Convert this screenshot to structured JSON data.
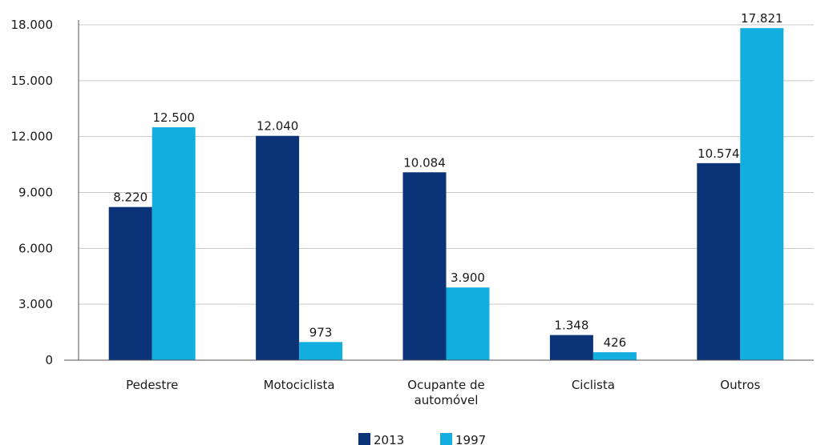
{
  "chart_data": {
    "type": "bar",
    "categories": [
      [
        "Pedestre"
      ],
      [
        "Motociclista"
      ],
      [
        "Ocupante de",
        "automóvel"
      ],
      [
        "Ciclista"
      ],
      [
        "Outros"
      ]
    ],
    "series": [
      {
        "name": "2013",
        "color": "#0b3478",
        "values": [
          8220,
          12040,
          10084,
          1348,
          10574
        ],
        "labels": [
          "8.220",
          "12.040",
          "10.084",
          "1.348",
          "10.574"
        ]
      },
      {
        "name": "1997",
        "color": "#13aee0",
        "values": [
          12500,
          973,
          3900,
          426,
          17821
        ],
        "labels": [
          "12.500",
          "973",
          "3.900",
          "426",
          "17.821"
        ]
      }
    ],
    "yticks": [
      0,
      3000,
      6000,
      9000,
      12000,
      15000,
      18000
    ],
    "ytick_labels": [
      "0",
      "3.000",
      "6.000",
      "9.000",
      "12.000",
      "15.000",
      "18.000"
    ],
    "ylim": [
      0,
      18000
    ],
    "grid": true,
    "legend": "bottom-center"
  }
}
